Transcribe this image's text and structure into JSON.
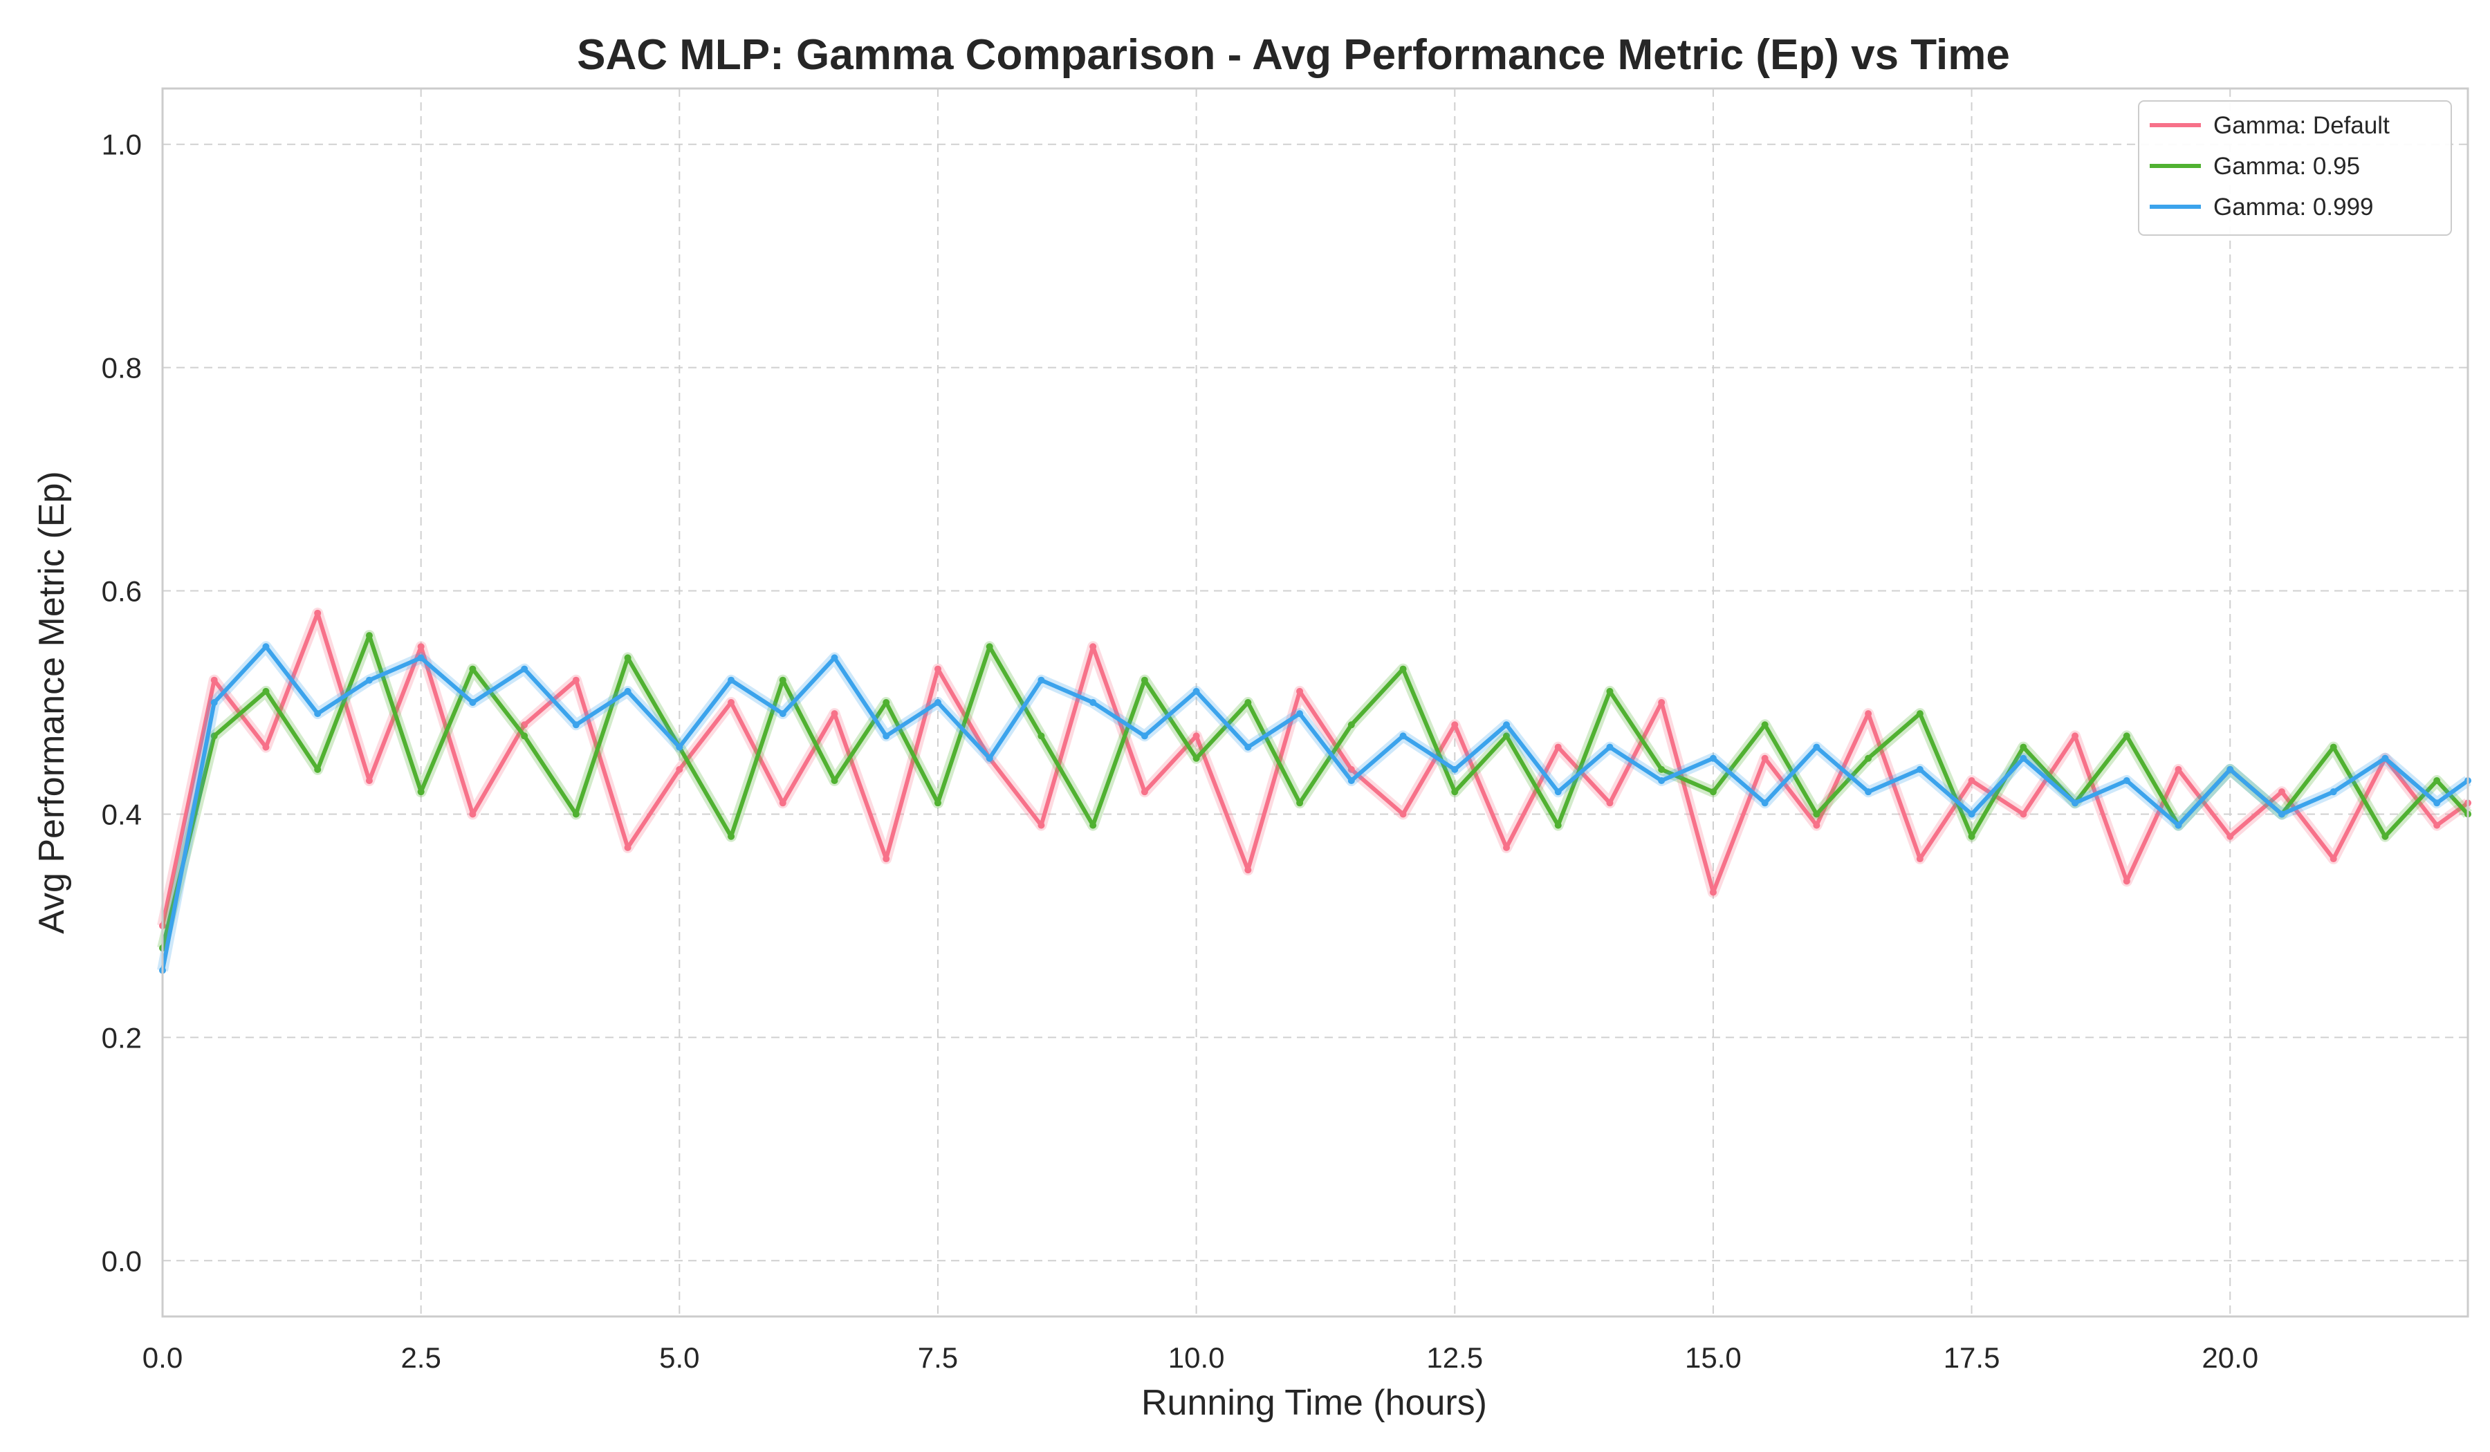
{
  "chart_data": {
    "type": "line",
    "title": "SAC MLP: Gamma Comparison - Avg Performance Metric (Ep) vs Time",
    "xlabel": "Running Time (hours)",
    "ylabel": "Avg Performance Metric (Ep)",
    "xlim": [
      0,
      22.3
    ],
    "ylim": [
      -0.05,
      1.05
    ],
    "xticks": [
      0.0,
      2.5,
      5.0,
      7.5,
      10.0,
      12.5,
      15.0,
      17.5,
      20.0
    ],
    "xtick_labels": [
      "0.0",
      "2.5",
      "5.0",
      "7.5",
      "10.0",
      "12.5",
      "15.0",
      "17.5",
      "20.0"
    ],
    "yticks": [
      0.0,
      0.2,
      0.4,
      0.6,
      0.8,
      1.0
    ],
    "ytick_labels": [
      "0.0",
      "0.2",
      "0.4",
      "0.6",
      "0.8",
      "1.0"
    ],
    "grid": true,
    "legend_position": "top-right",
    "series": [
      {
        "name": "Gamma: Default",
        "color": "#f77189",
        "x": [
          0.0,
          0.5,
          1.0,
          1.5,
          2.0,
          2.5,
          3.0,
          3.5,
          4.0,
          4.5,
          5.0,
          5.5,
          6.0,
          6.5,
          7.0,
          7.5,
          8.0,
          8.5,
          9.0,
          9.5,
          10.0,
          10.5,
          11.0,
          11.5,
          12.0,
          12.5,
          13.0,
          13.5,
          14.0,
          14.5,
          15.0,
          15.5,
          16.0,
          16.5,
          17.0,
          17.5,
          18.0,
          18.5,
          19.0,
          19.5,
          20.0,
          20.5,
          21.0,
          21.5,
          22.0,
          22.3
        ],
        "values": [
          0.3,
          0.52,
          0.46,
          0.58,
          0.43,
          0.55,
          0.4,
          0.48,
          0.52,
          0.37,
          0.44,
          0.5,
          0.41,
          0.49,
          0.36,
          0.53,
          0.45,
          0.39,
          0.55,
          0.42,
          0.47,
          0.35,
          0.51,
          0.44,
          0.4,
          0.48,
          0.37,
          0.46,
          0.41,
          0.5,
          0.33,
          0.45,
          0.39,
          0.49,
          0.36,
          0.43,
          0.4,
          0.47,
          0.34,
          0.44,
          0.38,
          0.42,
          0.36,
          0.45,
          0.39,
          0.41
        ]
      },
      {
        "name": "Gamma: 0.95",
        "color": "#50b131",
        "x": [
          0.0,
          0.5,
          1.0,
          1.5,
          2.0,
          2.5,
          3.0,
          3.5,
          4.0,
          4.5,
          5.0,
          5.5,
          6.0,
          6.5,
          7.0,
          7.5,
          8.0,
          8.5,
          9.0,
          9.5,
          10.0,
          10.5,
          11.0,
          11.5,
          12.0,
          12.5,
          13.0,
          13.5,
          14.0,
          14.5,
          15.0,
          15.5,
          16.0,
          16.5,
          17.0,
          17.5,
          18.0,
          18.5,
          19.0,
          19.5,
          20.0,
          20.5,
          21.0,
          21.5,
          22.0,
          22.3
        ],
        "values": [
          0.28,
          0.47,
          0.51,
          0.44,
          0.56,
          0.42,
          0.53,
          0.47,
          0.4,
          0.54,
          0.46,
          0.38,
          0.52,
          0.43,
          0.5,
          0.41,
          0.55,
          0.47,
          0.39,
          0.52,
          0.45,
          0.5,
          0.41,
          0.48,
          0.53,
          0.42,
          0.47,
          0.39,
          0.51,
          0.44,
          0.42,
          0.48,
          0.4,
          0.45,
          0.49,
          0.38,
          0.46,
          0.41,
          0.47,
          0.39,
          0.44,
          0.4,
          0.46,
          0.38,
          0.43,
          0.4
        ]
      },
      {
        "name": "Gamma: 0.999",
        "color": "#3ba3ec",
        "x": [
          0.0,
          0.5,
          1.0,
          1.5,
          2.0,
          2.5,
          3.0,
          3.5,
          4.0,
          4.5,
          5.0,
          5.5,
          6.0,
          6.5,
          7.0,
          7.5,
          8.0,
          8.5,
          9.0,
          9.5,
          10.0,
          10.5,
          11.0,
          11.5,
          12.0,
          12.5,
          13.0,
          13.5,
          14.0,
          14.5,
          15.0,
          15.5,
          16.0,
          16.5,
          17.0,
          17.5,
          18.0,
          18.5,
          19.0,
          19.5,
          20.0,
          20.5,
          21.0,
          21.5,
          22.0,
          22.3
        ],
        "values": [
          0.26,
          0.5,
          0.55,
          0.49,
          0.52,
          0.54,
          0.5,
          0.53,
          0.48,
          0.51,
          0.46,
          0.52,
          0.49,
          0.54,
          0.47,
          0.5,
          0.45,
          0.52,
          0.5,
          0.47,
          0.51,
          0.46,
          0.49,
          0.43,
          0.47,
          0.44,
          0.48,
          0.42,
          0.46,
          0.43,
          0.45,
          0.41,
          0.46,
          0.42,
          0.44,
          0.4,
          0.45,
          0.41,
          0.43,
          0.39,
          0.44,
          0.4,
          0.42,
          0.45,
          0.41,
          0.43
        ]
      }
    ]
  }
}
